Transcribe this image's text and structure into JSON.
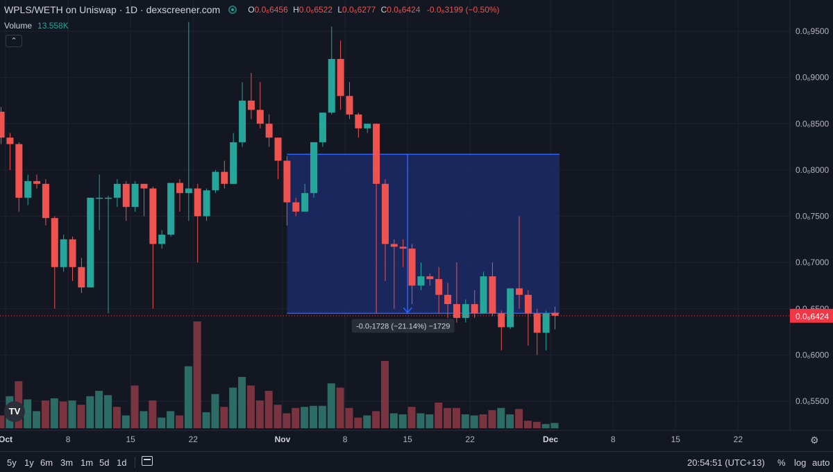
{
  "header": {
    "symbol_line": "WPLS/WETH on Uniswap · 1D · dexscreener.com",
    "ohlc": [
      {
        "key": "O",
        "value": "0.0₆6456"
      },
      {
        "key": "H",
        "value": "0.0₆6522"
      },
      {
        "key": "L",
        "value": "0.0₆6277"
      },
      {
        "key": "C",
        "value": "0.0₆6424"
      }
    ],
    "change": "-0.0₈3199 (−0.50%)",
    "volume_label": "Volume",
    "volume_value": "13.558K"
  },
  "colors": {
    "background": "#131722",
    "up": "#26a69a",
    "down": "#ef5350",
    "vol_up": "#2c6c65",
    "vol_down": "#7a3440",
    "measure_fill": "#1b2a66",
    "measure_line": "#2962ff",
    "price_label_bg": "#f23645"
  },
  "chart_data": {
    "type": "candlestick",
    "interval": "1D",
    "ylim": [
      5.2e-08,
      9.7e-08
    ],
    "y_ticks": [
      5.5e-08,
      6e-08,
      6.5e-08,
      7e-08,
      7.5e-08,
      8e-08,
      8.5e-08,
      9e-08,
      9.5e-08
    ],
    "y_tick_labels": [
      "0.0₆5500",
      "0.0₆6000",
      "0.0₆6500",
      "0.0₆7000",
      "0.0₆7500",
      "0.0₆8000",
      "0.0₆8500",
      "0.0₆9000",
      "0.0₆9500"
    ],
    "x_tick_labels": [
      {
        "day": 0,
        "label": "Oct"
      },
      {
        "day": 7,
        "label": "8"
      },
      {
        "day": 14,
        "label": "15"
      },
      {
        "day": 21,
        "label": "22"
      },
      {
        "day": 31,
        "label": "Nov"
      },
      {
        "day": 38,
        "label": "8"
      },
      {
        "day": 45,
        "label": "15"
      },
      {
        "day": 52,
        "label": "22"
      },
      {
        "day": 61,
        "label": "Dec"
      },
      {
        "day": 68,
        "label": "8"
      },
      {
        "day": 75,
        "label": "15"
      },
      {
        "day": 82,
        "label": "22"
      }
    ],
    "x_day_range": [
      -0.5,
      88
    ],
    "last_price_label": "0.0₆6424",
    "last_price": 6.424e-08,
    "candles": [
      {
        "day": -0.5,
        "o": 8.63,
        "h": 8.68,
        "c": 8.35,
        "l": 8.28
      },
      {
        "day": 0.5,
        "o": 8.35,
        "h": 8.4,
        "c": 8.28,
        "l": 8.0
      },
      {
        "day": 1.5,
        "o": 8.28,
        "h": 8.3,
        "c": 7.7,
        "l": 7.55
      },
      {
        "day": 2.5,
        "o": 7.7,
        "h": 7.95,
        "c": 7.88,
        "l": 7.62
      },
      {
        "day": 3.5,
        "o": 7.88,
        "h": 7.95,
        "c": 7.85,
        "l": 7.8
      },
      {
        "day": 4.5,
        "o": 7.85,
        "h": 7.9,
        "c": 7.48,
        "l": 7.4
      },
      {
        "day": 5.5,
        "o": 7.48,
        "h": 7.5,
        "c": 6.95,
        "l": 6.5
      },
      {
        "day": 6.5,
        "o": 6.95,
        "h": 7.3,
        "c": 7.25,
        "l": 6.9
      },
      {
        "day": 7.5,
        "o": 7.25,
        "h": 7.28,
        "c": 6.95,
        "l": 6.8
      },
      {
        "day": 8.5,
        "o": 6.95,
        "h": 7.05,
        "c": 6.73,
        "l": 6.67
      },
      {
        "day": 9.5,
        "o": 6.73,
        "h": 7.7,
        "c": 7.7,
        "l": 6.73
      },
      {
        "day": 10.5,
        "o": 7.7,
        "h": 7.95,
        "c": 7.7,
        "l": 7.35
      },
      {
        "day": 11.5,
        "o": 7.7,
        "h": 7.72,
        "c": 7.7,
        "l": 6.45
      },
      {
        "day": 12.5,
        "o": 7.7,
        "h": 7.9,
        "c": 7.85,
        "l": 7.6
      },
      {
        "day": 13.5,
        "o": 7.85,
        "h": 7.88,
        "c": 7.6,
        "l": 7.45
      },
      {
        "day": 14.5,
        "o": 7.6,
        "h": 7.88,
        "c": 7.85,
        "l": 7.55
      },
      {
        "day": 15.5,
        "o": 7.85,
        "h": 7.85,
        "c": 7.8,
        "l": 7.5
      },
      {
        "day": 16.5,
        "o": 7.8,
        "h": 7.82,
        "c": 7.2,
        "l": 6.5
      },
      {
        "day": 17.5,
        "o": 7.2,
        "h": 7.35,
        "c": 7.3,
        "l": 7.15
      },
      {
        "day": 18.5,
        "o": 7.3,
        "h": 7.86,
        "c": 7.86,
        "l": 7.28
      },
      {
        "day": 19.5,
        "o": 7.86,
        "h": 7.9,
        "c": 7.75,
        "l": 7.55
      },
      {
        "day": 20.5,
        "o": 7.75,
        "h": 9.6,
        "c": 7.8,
        "l": 7.45
      },
      {
        "day": 21.5,
        "o": 7.8,
        "h": 7.85,
        "c": 7.5,
        "l": 7.0
      },
      {
        "day": 22.5,
        "o": 7.5,
        "h": 7.8,
        "c": 7.78,
        "l": 7.45
      },
      {
        "day": 23.5,
        "o": 7.78,
        "h": 8.0,
        "c": 7.98,
        "l": 7.75
      },
      {
        "day": 24.5,
        "o": 7.98,
        "h": 8.1,
        "c": 7.85,
        "l": 7.8
      },
      {
        "day": 25.5,
        "o": 7.85,
        "h": 8.4,
        "c": 8.3,
        "l": 7.85
      },
      {
        "day": 26.5,
        "o": 8.3,
        "h": 8.95,
        "c": 8.75,
        "l": 8.25
      },
      {
        "day": 27.5,
        "o": 8.75,
        "h": 9.05,
        "c": 8.65,
        "l": 8.55
      },
      {
        "day": 28.5,
        "o": 8.65,
        "h": 8.95,
        "c": 8.5,
        "l": 8.45
      },
      {
        "day": 29.5,
        "o": 8.5,
        "h": 8.6,
        "c": 8.35,
        "l": 8.25
      },
      {
        "day": 30.5,
        "o": 8.35,
        "h": 8.35,
        "c": 8.1,
        "l": 7.9
      },
      {
        "day": 31.5,
        "o": 8.1,
        "h": 8.15,
        "c": 7.65,
        "l": 7.4
      },
      {
        "day": 32.5,
        "o": 7.65,
        "h": 7.7,
        "c": 7.55,
        "l": 7.5
      },
      {
        "day": 33.5,
        "o": 7.55,
        "h": 7.85,
        "c": 7.75,
        "l": 7.55
      },
      {
        "day": 34.5,
        "o": 7.75,
        "h": 8.3,
        "c": 8.3,
        "l": 7.7
      },
      {
        "day": 35.5,
        "o": 8.3,
        "h": 8.62,
        "c": 8.62,
        "l": 8.25
      },
      {
        "day": 36.5,
        "o": 8.62,
        "h": 9.55,
        "c": 9.2,
        "l": 8.6
      },
      {
        "day": 37.5,
        "o": 9.2,
        "h": 9.4,
        "c": 8.8,
        "l": 8.65
      },
      {
        "day": 38.5,
        "o": 8.8,
        "h": 8.95,
        "c": 8.6,
        "l": 8.55
      },
      {
        "day": 39.5,
        "o": 8.6,
        "h": 8.62,
        "c": 8.45,
        "l": 8.35
      },
      {
        "day": 40.5,
        "o": 8.45,
        "h": 8.5,
        "c": 8.5,
        "l": 8.4
      },
      {
        "day": 41.5,
        "o": 8.5,
        "h": 8.5,
        "c": 7.85,
        "l": 6.45
      },
      {
        "day": 42.5,
        "o": 7.85,
        "h": 7.9,
        "c": 7.2,
        "l": 6.8
      },
      {
        "day": 43.5,
        "o": 7.2,
        "h": 7.25,
        "c": 7.17,
        "l": 6.5
      },
      {
        "day": 44.5,
        "o": 7.17,
        "h": 7.25,
        "c": 7.15,
        "l": 6.95
      },
      {
        "day": 45.5,
        "o": 7.15,
        "h": 7.2,
        "c": 6.75,
        "l": 6.55
      },
      {
        "day": 46.5,
        "o": 6.75,
        "h": 7.0,
        "c": 6.85,
        "l": 6.7
      },
      {
        "day": 47.5,
        "o": 6.85,
        "h": 6.88,
        "c": 6.82,
        "l": 6.75
      },
      {
        "day": 48.5,
        "o": 6.82,
        "h": 6.95,
        "c": 6.65,
        "l": 6.45
      },
      {
        "day": 49.5,
        "o": 6.65,
        "h": 6.78,
        "c": 6.55,
        "l": 6.4
      },
      {
        "day": 50.5,
        "o": 6.55,
        "h": 7.0,
        "c": 6.4,
        "l": 6.35
      },
      {
        "day": 51.5,
        "o": 6.4,
        "h": 6.6,
        "c": 6.55,
        "l": 6.35
      },
      {
        "day": 52.5,
        "o": 6.55,
        "h": 6.7,
        "c": 6.45,
        "l": 6.4
      },
      {
        "day": 53.5,
        "o": 6.45,
        "h": 6.9,
        "c": 6.85,
        "l": 6.45
      },
      {
        "day": 54.5,
        "o": 6.85,
        "h": 7.0,
        "c": 6.45,
        "l": 6.42
      },
      {
        "day": 55.5,
        "o": 6.45,
        "h": 6.48,
        "c": 6.3,
        "l": 6.05
      },
      {
        "day": 56.5,
        "o": 6.3,
        "h": 6.72,
        "c": 6.72,
        "l": 6.28
      },
      {
        "day": 57.5,
        "o": 6.72,
        "h": 7.5,
        "c": 6.65,
        "l": 6.5
      },
      {
        "day": 58.5,
        "o": 6.65,
        "h": 6.7,
        "c": 6.45,
        "l": 6.1
      },
      {
        "day": 59.5,
        "o": 6.45,
        "h": 6.5,
        "c": 6.24,
        "l": 6.0
      },
      {
        "day": 60.5,
        "o": 6.24,
        "h": 6.48,
        "c": 6.45,
        "l": 6.05
      },
      {
        "day": 61.5,
        "o": 6.456,
        "h": 6.522,
        "c": 6.424,
        "l": 6.277
      }
    ],
    "volume_max": 100,
    "volume": [
      {
        "day": -0.5,
        "v": 12,
        "up": false
      },
      {
        "day": 0.5,
        "v": 30,
        "up": true
      },
      {
        "day": 1.5,
        "v": 44,
        "up": false
      },
      {
        "day": 2.5,
        "v": 27,
        "up": true
      },
      {
        "day": 3.5,
        "v": 16,
        "up": true
      },
      {
        "day": 4.5,
        "v": 26,
        "up": false
      },
      {
        "day": 5.5,
        "v": 28,
        "up": true
      },
      {
        "day": 6.5,
        "v": 25,
        "up": false
      },
      {
        "day": 7.5,
        "v": 26,
        "up": true
      },
      {
        "day": 8.5,
        "v": 22,
        "up": false
      },
      {
        "day": 9.5,
        "v": 30,
        "up": true
      },
      {
        "day": 10.5,
        "v": 35,
        "up": true
      },
      {
        "day": 11.5,
        "v": 31,
        "up": true
      },
      {
        "day": 12.5,
        "v": 20,
        "up": false
      },
      {
        "day": 13.5,
        "v": 12,
        "up": true
      },
      {
        "day": 14.5,
        "v": 40,
        "up": false
      },
      {
        "day": 15.5,
        "v": 16,
        "up": true
      },
      {
        "day": 16.5,
        "v": 26,
        "up": false
      },
      {
        "day": 17.5,
        "v": 10,
        "up": true
      },
      {
        "day": 18.5,
        "v": 16,
        "up": true
      },
      {
        "day": 19.5,
        "v": 12,
        "up": false
      },
      {
        "day": 20.5,
        "v": 58,
        "up": true
      },
      {
        "day": 21.5,
        "v": 100,
        "up": false
      },
      {
        "day": 22.5,
        "v": 15,
        "up": true
      },
      {
        "day": 23.5,
        "v": 32,
        "up": true
      },
      {
        "day": 24.5,
        "v": 20,
        "up": false
      },
      {
        "day": 25.5,
        "v": 38,
        "up": true
      },
      {
        "day": 26.5,
        "v": 48,
        "up": true
      },
      {
        "day": 27.5,
        "v": 40,
        "up": false
      },
      {
        "day": 28.5,
        "v": 26,
        "up": false
      },
      {
        "day": 29.5,
        "v": 35,
        "up": false
      },
      {
        "day": 30.5,
        "v": 22,
        "up": false
      },
      {
        "day": 31.5,
        "v": 14,
        "up": false
      },
      {
        "day": 32.5,
        "v": 19,
        "up": false
      },
      {
        "day": 33.5,
        "v": 20,
        "up": true
      },
      {
        "day": 34.5,
        "v": 21,
        "up": true
      },
      {
        "day": 35.5,
        "v": 21,
        "up": true
      },
      {
        "day": 36.5,
        "v": 42,
        "up": true
      },
      {
        "day": 37.5,
        "v": 38,
        "up": false
      },
      {
        "day": 38.5,
        "v": 19,
        "up": false
      },
      {
        "day": 39.5,
        "v": 10,
        "up": false
      },
      {
        "day": 40.5,
        "v": 12,
        "up": true
      },
      {
        "day": 41.5,
        "v": 16,
        "up": false
      },
      {
        "day": 42.5,
        "v": 63,
        "up": false
      },
      {
        "day": 43.5,
        "v": 14,
        "up": true
      },
      {
        "day": 44.5,
        "v": 13,
        "up": true
      },
      {
        "day": 45.5,
        "v": 20,
        "up": false
      },
      {
        "day": 46.5,
        "v": 14,
        "up": true
      },
      {
        "day": 47.5,
        "v": 13,
        "up": true
      },
      {
        "day": 48.5,
        "v": 24,
        "up": false
      },
      {
        "day": 49.5,
        "v": 19,
        "up": false
      },
      {
        "day": 50.5,
        "v": 19,
        "up": false
      },
      {
        "day": 51.5,
        "v": 13,
        "up": true
      },
      {
        "day": 52.5,
        "v": 12,
        "up": true
      },
      {
        "day": 53.5,
        "v": 13,
        "up": false
      },
      {
        "day": 54.5,
        "v": 17,
        "up": false
      },
      {
        "day": 55.5,
        "v": 19,
        "up": true
      },
      {
        "day": 56.5,
        "v": 13,
        "up": true
      },
      {
        "day": 57.5,
        "v": 18,
        "up": false
      },
      {
        "day": 58.5,
        "v": 7,
        "up": false
      },
      {
        "day": 59.5,
        "v": 6,
        "up": false
      },
      {
        "day": 60.5,
        "v": 4,
        "up": true
      },
      {
        "day": 61.5,
        "v": 5,
        "up": true
      }
    ],
    "measure": {
      "day_start": 31.5,
      "day_end": 62,
      "price_top": 8.17,
      "price_bottom": 6.45,
      "label": "-0.0₇1728 (−21.14%) −1729"
    }
  },
  "bottom": {
    "ranges": [
      "5y",
      "1y",
      "6m",
      "3m",
      "1m",
      "5d",
      "1d"
    ],
    "clock": "20:54:51 (UTC+13)",
    "pct_toggle": "%",
    "log_toggle": "log",
    "auto_toggle": "auto"
  }
}
